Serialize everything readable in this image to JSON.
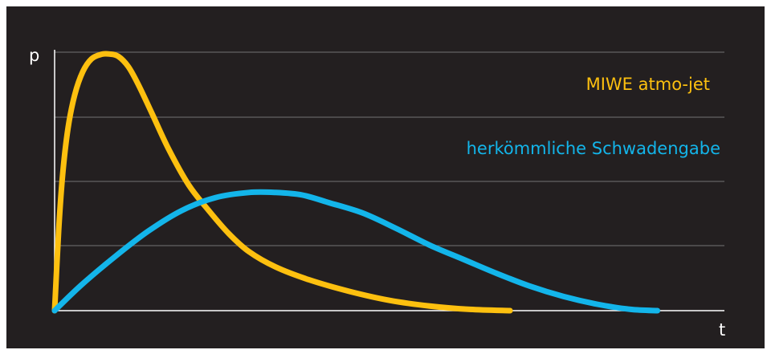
{
  "chart_data": {
    "type": "line",
    "xlabel": "t",
    "ylabel": "p",
    "xlim": [
      0,
      10
    ],
    "ylim": [
      0,
      10
    ],
    "grid": true,
    "colors": {
      "background": "#231f20",
      "axes": "#ffffff",
      "grid": "#7a7a7a",
      "miwe": "#fdc00f",
      "conventional": "#13b5ea"
    },
    "series": [
      {
        "name": "MIWE atmo-jet",
        "color": "#fdc00f",
        "x": [
          0,
          0.06,
          0.12,
          0.2,
          0.3,
          0.42,
          0.55,
          0.7,
          0.82,
          0.95,
          1.1,
          1.25,
          1.45,
          1.7,
          2.0,
          2.3,
          2.6,
          2.9,
          3.3,
          3.8,
          4.4,
          5.0,
          5.6,
          6.2,
          6.8
        ],
        "y": [
          0,
          3.1,
          5.3,
          7.1,
          8.4,
          9.3,
          9.8,
          9.98,
          9.99,
          9.9,
          9.5,
          8.8,
          7.7,
          6.3,
          4.9,
          3.9,
          3.0,
          2.3,
          1.7,
          1.2,
          0.75,
          0.4,
          0.18,
          0.05,
          0
        ]
      },
      {
        "name": "herkömmliche Schwadengabe",
        "color": "#13b5ea",
        "x": [
          0,
          0.4,
          0.9,
          1.4,
          1.9,
          2.4,
          2.9,
          3.3,
          3.7,
          4.1,
          4.6,
          5.1,
          5.6,
          6.1,
          6.6,
          7.1,
          7.6,
          8.1,
          8.6,
          9.0
        ],
        "y": [
          0,
          1.0,
          2.1,
          3.1,
          3.9,
          4.4,
          4.6,
          4.6,
          4.5,
          4.2,
          3.8,
          3.2,
          2.55,
          2.0,
          1.45,
          0.95,
          0.55,
          0.25,
          0.05,
          0
        ]
      }
    ]
  }
}
